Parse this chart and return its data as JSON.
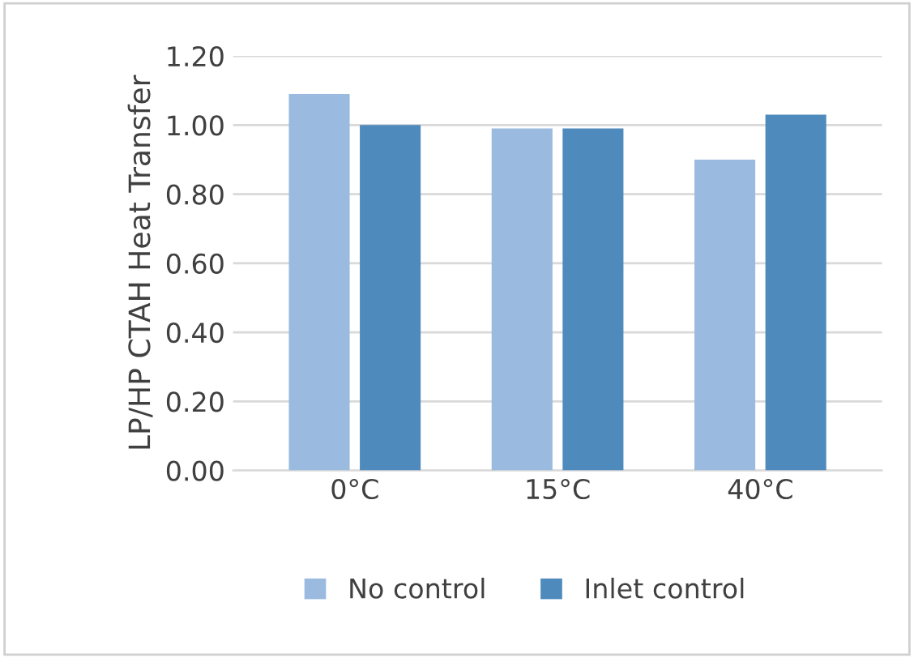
{
  "chart_data": {
    "type": "bar",
    "ylabel": "LP/HP CTAH Heat Transfer",
    "categories": [
      "0°C",
      "15°C",
      "40°C"
    ],
    "series": [
      {
        "name": "No control",
        "color": "#9bbae0",
        "values": [
          1.09,
          0.99,
          0.9
        ]
      },
      {
        "name": "Inlet control",
        "color": "#4f8abd",
        "values": [
          1.0,
          0.99,
          1.03
        ]
      }
    ],
    "ylim": [
      0,
      1.2
    ],
    "yticks": [
      {
        "value": 0,
        "label": "0.00"
      },
      {
        "value": 0.2,
        "label": "0.20"
      },
      {
        "value": 0.4,
        "label": "0.40"
      },
      {
        "value": 0.6,
        "label": "0.60"
      },
      {
        "value": 0.8,
        "label": "0.80"
      },
      {
        "value": 1.0,
        "label": "1.00"
      },
      {
        "value": 1.2,
        "label": "1.20"
      }
    ],
    "grid": "y",
    "legend": "bottom"
  }
}
